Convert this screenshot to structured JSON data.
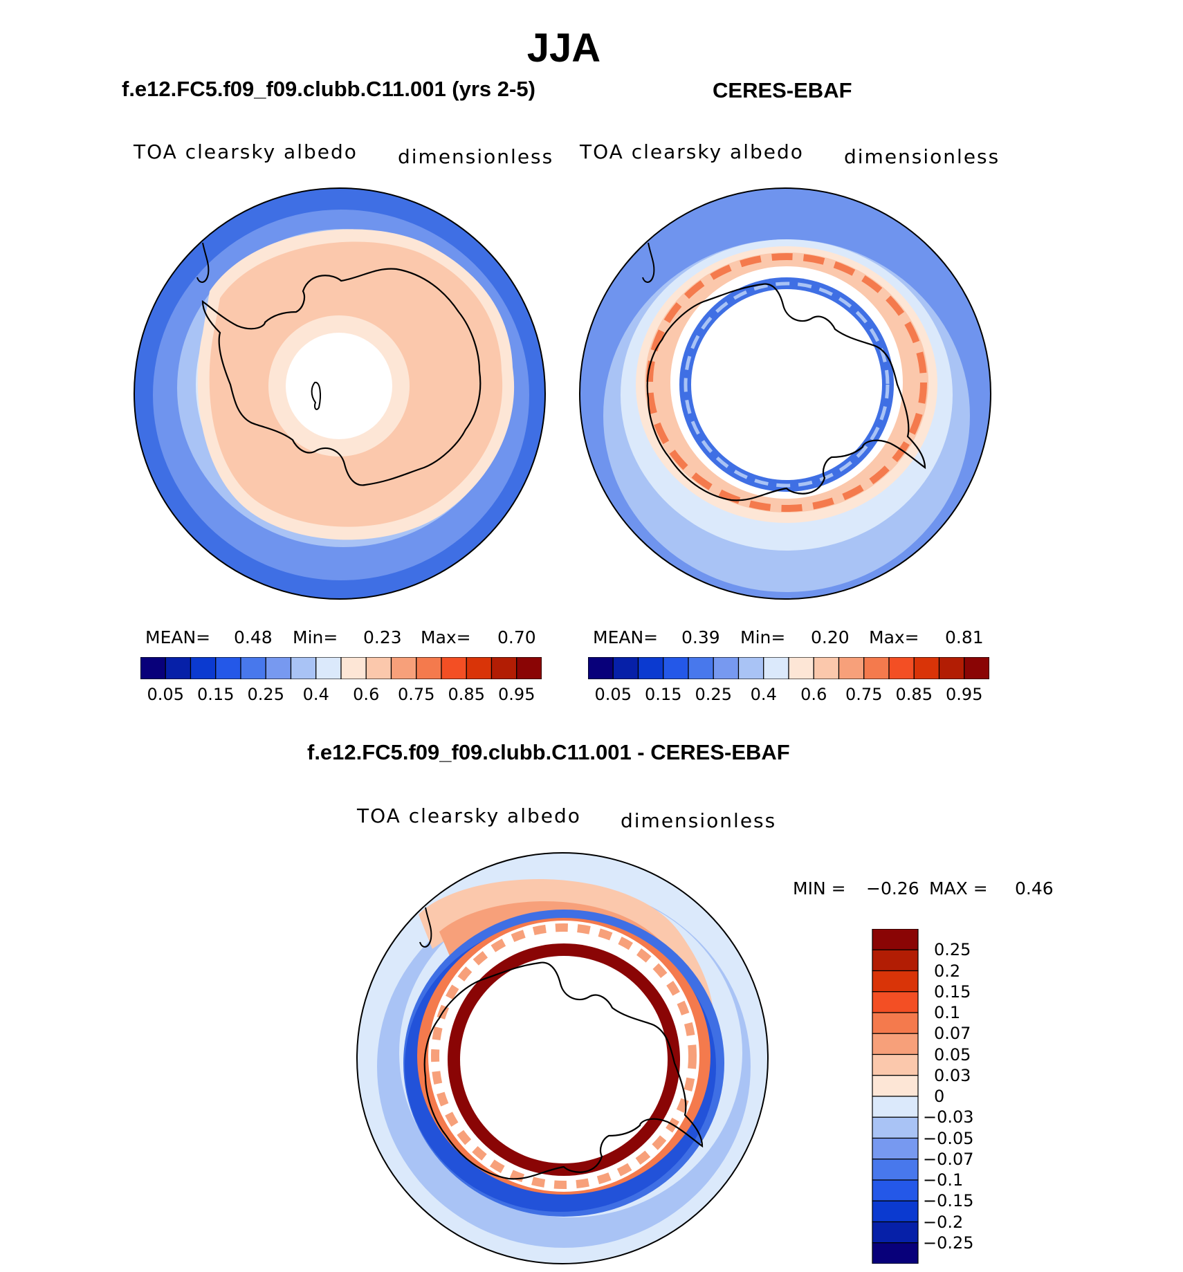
{
  "season": "JJA",
  "panels": [
    {
      "title": "f.e12.FC5.f09_f09.clubb.C11.001 (yrs 2-5)",
      "variable": "TOA clearsky albedo",
      "units": "dimensionless",
      "stats": {
        "mean_label": "MEAN=",
        "mean": "0.48",
        "min_label": "Min=",
        "min": "0.23",
        "max_label": "Max=",
        "max": "0.70"
      }
    },
    {
      "title": "CERES-EBAF",
      "variable": "TOA clearsky albedo",
      "units": "dimensionless",
      "stats": {
        "mean_label": "MEAN=",
        "mean": "0.39",
        "min_label": "Min=",
        "min": "0.20",
        "max_label": "Max=",
        "max": "0.81"
      }
    },
    {
      "title": "f.e12.FC5.f09_f09.clubb.C11.001 - CERES-EBAF",
      "variable": "TOA clearsky albedo",
      "units": "dimensionless",
      "stats": {
        "min_label": "MIN =",
        "min": "−0.26",
        "max_label": "MAX =",
        "max": "0.46"
      }
    }
  ],
  "colorbar_abs": {
    "colors": [
      "#08007a",
      "#0620a8",
      "#0b3ad0",
      "#2458e8",
      "#4878ec",
      "#7799f0",
      "#a9c3f5",
      "#dbe9fb",
      "#fde6d6",
      "#fbc8ac",
      "#f7a07a",
      "#f47a4d",
      "#f34f24",
      "#d93408",
      "#b21d04",
      "#8a0505"
    ],
    "tick_labels": [
      "0.05",
      "0.15",
      "0.25",
      "0.4",
      "0.6",
      "0.75",
      "0.85",
      "0.95"
    ]
  },
  "colorbar_diff": {
    "colors": [
      "#08007a",
      "#0620a8",
      "#0b3ad0",
      "#2458e8",
      "#4878ec",
      "#7799f0",
      "#a9c3f5",
      "#dbe9fb",
      "#fde6d6",
      "#fbc8ac",
      "#f7a07a",
      "#f47a4d",
      "#f34f24",
      "#d93408",
      "#b21d04",
      "#8a0505"
    ],
    "tick_labels": [
      "0.25",
      "0.2",
      "0.15",
      "0.1",
      "0.07",
      "0.05",
      "0.03",
      "0",
      "−0.03",
      "−0.05",
      "−0.07",
      "−0.1",
      "−0.15",
      "−0.2",
      "−0.25"
    ]
  },
  "map_colors": {
    "deep_blue": "#3f6fe4",
    "mid_blue": "#6f94ee",
    "light_blue": "#a9c3f5",
    "pale_blue": "#dbe9fb",
    "peach": "#fbc8ac",
    "pale_peach": "#fde6d6",
    "salmon": "#f7a07a",
    "orange_red": "#f47a4d",
    "dark_red": "#8a0505",
    "navy": "#0b3ad0"
  }
}
